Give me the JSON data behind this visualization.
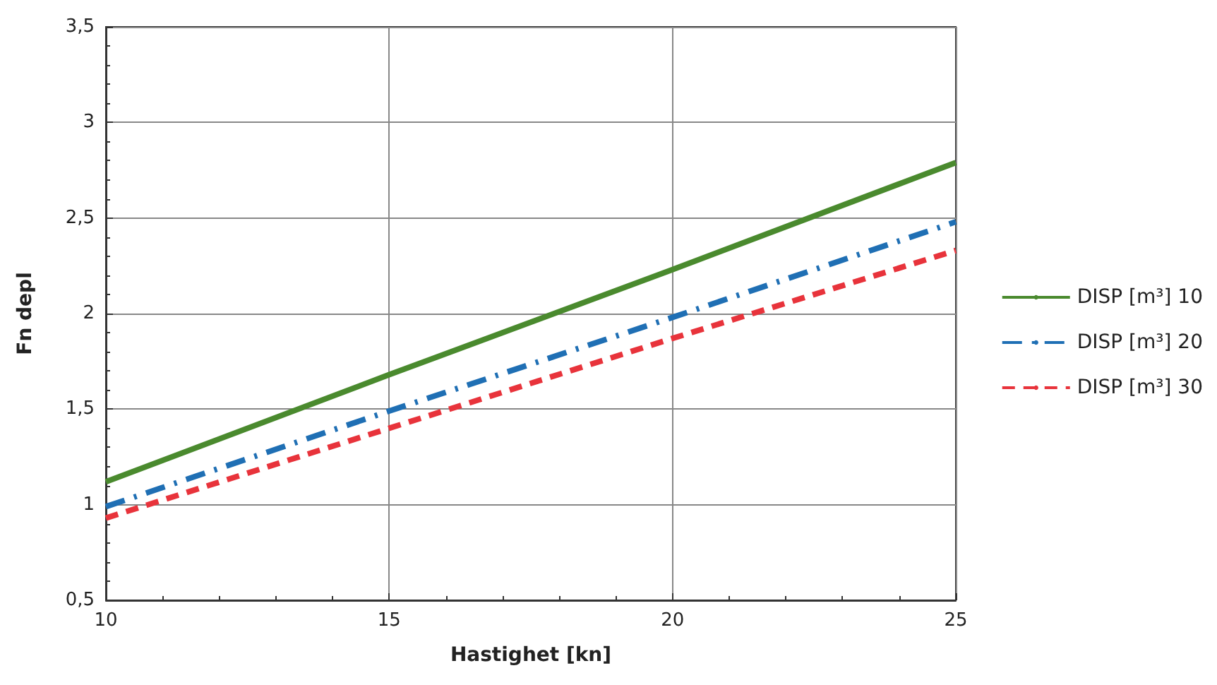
{
  "chart_data": {
    "type": "line",
    "xlabel": "Hastighet [kn]",
    "ylabel": "Fn depl",
    "x": [
      10,
      15,
      20,
      25
    ],
    "series": [
      {
        "name": "DISP [m³] 10",
        "color": "#4a8a2e",
        "line_style": "solid",
        "values": [
          1.12,
          1.68,
          2.23,
          2.79
        ]
      },
      {
        "name": "DISP [m³] 20",
        "color": "#1f6fb4",
        "line_style": "dashdot",
        "values": [
          0.99,
          1.49,
          1.98,
          2.48
        ]
      },
      {
        "name": "DISP [m³] 30",
        "color": "#e8333b",
        "line_style": "dashed",
        "values": [
          0.93,
          1.4,
          1.87,
          2.33
        ]
      }
    ],
    "xlim": [
      10,
      25
    ],
    "xticks": [
      10,
      15,
      20,
      25
    ],
    "ylim": [
      0.5,
      3.5
    ],
    "yticks": [
      {
        "value": 0.5,
        "label": "0,5"
      },
      1,
      {
        "value": 1.5,
        "label": "1,5"
      },
      2,
      {
        "value": 2.5,
        "label": "2,5"
      },
      3,
      {
        "value": 3.5,
        "label": "3,5"
      }
    ],
    "grid": true,
    "legend": "right",
    "marker": "none"
  }
}
